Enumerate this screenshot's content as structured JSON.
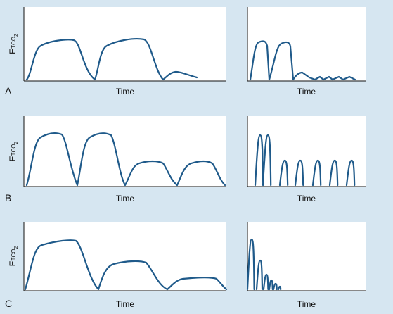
{
  "panels": [
    {
      "label": "A",
      "y_label": [
        "E",
        "TCO",
        "2"
      ],
      "left_x_label": "Time",
      "right_x_label": "Time"
    },
    {
      "label": "B",
      "y_label": [
        "E",
        "TCO",
        "2"
      ],
      "left_x_label": "Time",
      "right_x_label": "Time"
    },
    {
      "label": "C",
      "y_label": [
        "E",
        "TCO",
        "2"
      ],
      "left_x_label": "Time",
      "right_x_label": "Time"
    }
  ]
}
